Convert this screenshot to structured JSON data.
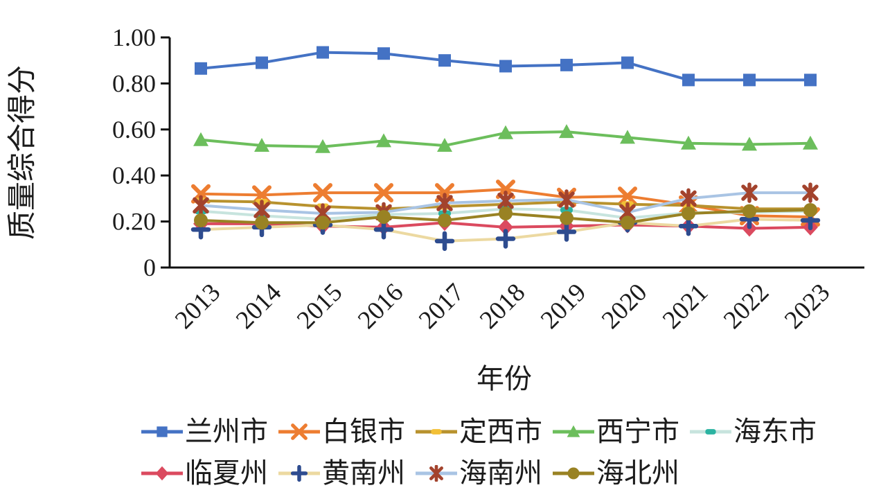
{
  "chart_data": {
    "type": "line",
    "title": "",
    "xlabel": "年份",
    "ylabel": "质量综合得分",
    "x": [
      "2013",
      "2014",
      "2015",
      "2016",
      "2017",
      "2018",
      "2019",
      "2020",
      "2021",
      "2022",
      "2023"
    ],
    "ylim": [
      0,
      1.0
    ],
    "yticks": [
      0,
      0.2,
      0.4,
      0.6,
      0.8,
      1.0
    ],
    "ytick_labels": [
      "0",
      "0.20",
      "0.40",
      "0.60",
      "0.80",
      "1.00"
    ],
    "grid": false,
    "legend_position": "bottom",
    "axis_color": "#111111",
    "series": [
      {
        "name": "兰州市",
        "marker": "square",
        "line_color": "#4472C4",
        "marker_color": "#4472C4",
        "values": [
          0.865,
          0.89,
          0.935,
          0.93,
          0.9,
          0.875,
          0.88,
          0.89,
          0.815,
          0.815,
          0.815
        ]
      },
      {
        "name": "白银市",
        "marker": "x",
        "line_color": "#ED7D31",
        "marker_color": "#ED7D31",
        "values": [
          0.32,
          0.315,
          0.325,
          0.325,
          0.325,
          0.34,
          0.305,
          0.31,
          0.272,
          0.225,
          0.22
        ]
      },
      {
        "name": "定西市",
        "marker": "dash",
        "line_color": "#B8922E",
        "marker_color": "#F2C037",
        "values": [
          0.29,
          0.285,
          0.265,
          0.255,
          0.265,
          0.275,
          0.285,
          0.275,
          0.27,
          0.255,
          0.255
        ]
      },
      {
        "name": "西宁市",
        "marker": "triangle",
        "line_color": "#6CBE5C",
        "marker_color": "#6CBE5C",
        "values": [
          0.555,
          0.53,
          0.525,
          0.55,
          0.53,
          0.585,
          0.59,
          0.565,
          0.54,
          0.535,
          0.54
        ]
      },
      {
        "name": "海东市",
        "marker": "dash",
        "line_color": "#C7E4DE",
        "marker_color": "#2BB3A1",
        "values": [
          0.245,
          0.225,
          0.21,
          0.23,
          0.235,
          0.255,
          0.25,
          0.215,
          0.238,
          0.24,
          0.245
        ]
      },
      {
        "name": "临夏州",
        "marker": "diamond",
        "line_color": "#DB4A5F",
        "marker_color": "#DB4A5F",
        "values": [
          0.19,
          0.19,
          0.18,
          0.175,
          0.195,
          0.175,
          0.18,
          0.185,
          0.18,
          0.17,
          0.175
        ]
      },
      {
        "name": "黄南州",
        "marker": "plus",
        "line_color": "#ECD9A1",
        "marker_color": "#2E4C8F",
        "values": [
          0.165,
          0.175,
          0.185,
          0.165,
          0.115,
          0.125,
          0.155,
          0.195,
          0.18,
          0.21,
          0.205
        ]
      },
      {
        "name": "海南州",
        "marker": "asterisk",
        "line_color": "#A9C4E4",
        "marker_color": "#A3432D",
        "values": [
          0.27,
          0.25,
          0.235,
          0.24,
          0.28,
          0.29,
          0.295,
          0.24,
          0.3,
          0.325,
          0.325
        ]
      },
      {
        "name": "海北州",
        "marker": "circle",
        "line_color": "#998223",
        "marker_color": "#998223",
        "values": [
          0.205,
          0.195,
          0.195,
          0.22,
          0.205,
          0.235,
          0.215,
          0.195,
          0.235,
          0.245,
          0.25
        ]
      }
    ],
    "legend_rows": [
      [
        0,
        1,
        2,
        3,
        4
      ],
      [
        5,
        6,
        7,
        8
      ]
    ]
  }
}
